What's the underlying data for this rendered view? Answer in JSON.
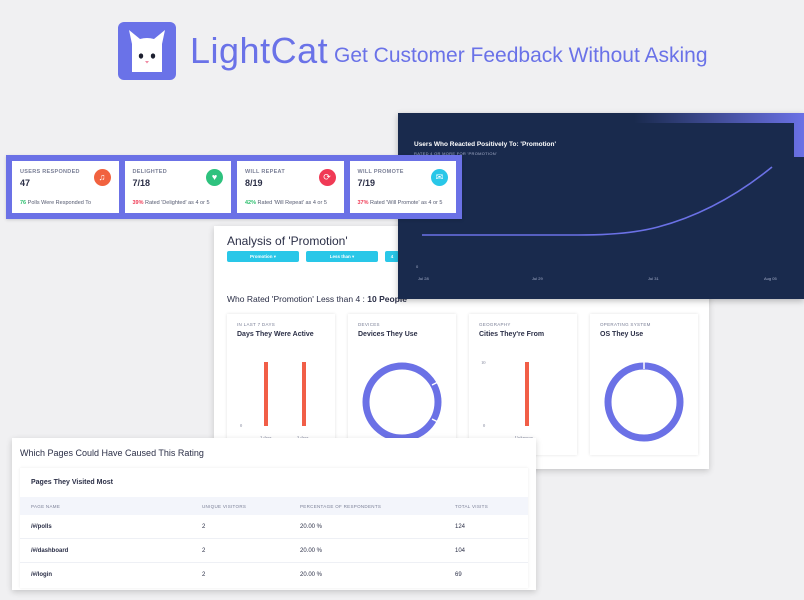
{
  "header": {
    "brand": "LightCat",
    "tagline": "Get Customer Feedback Without Asking"
  },
  "stats": [
    {
      "label": "USERS RESPONDED",
      "value": "47",
      "pct": "76",
      "sub": " Polls Were Responded To",
      "pct_color": "#2dbf6e",
      "icon": "music-note-icon",
      "icon_color": "#f1623f",
      "glyph": "♫"
    },
    {
      "label": "DELIGHTED",
      "value": "7/18",
      "pct": "39%",
      "sub": " Rated 'Delighted' as 4 or 5",
      "pct_color": "#f03a55",
      "icon": "heart-icon",
      "icon_color": "#2ec27e",
      "glyph": "♥"
    },
    {
      "label": "WILL REPEAT",
      "value": "8/19",
      "pct": "42%",
      "sub": " Rated 'Will Repeat' as 4 or 5",
      "pct_color": "#2dbf6e",
      "icon": "repeat-icon",
      "icon_color": "#f03a55",
      "glyph": "⟳"
    },
    {
      "label": "WILL PROMOTE",
      "value": "7/19",
      "pct": "37%",
      "sub": " Rated 'Will Promote' as 4 or 5",
      "pct_color": "#f03a55",
      "icon": "megaphone-icon",
      "icon_color": "#29c7e8",
      "glyph": "✉"
    }
  ],
  "positive_chart": {
    "title": "Users Who Reacted Positively To: 'Promotion'",
    "subtitle": "RATED 4 OR MORE FOR 'PROMOTION'",
    "y_tick": "0",
    "x_ticks": [
      "Jul 28",
      "Jul 29",
      "Jul 31",
      "Aug 05"
    ],
    "line_color": "#6b71e6"
  },
  "analysis": {
    "title": "Analysis of 'Promotion'",
    "chips": [
      "Promotion ▾",
      "Less than ▾",
      "4"
    ],
    "rated_prefix": "Who Rated 'Promotion' Less than 4 : ",
    "rated_count": "10 People"
  },
  "cards": {
    "days": {
      "label": "IN LAST 7 DAYS",
      "title": "Days They Were Active",
      "y_tick": "0",
      "x_ticks": [
        "2 days",
        "3 days"
      ]
    },
    "devices": {
      "label": "DEVICES",
      "title": "Devices They Use"
    },
    "cities": {
      "label": "GEOGRAPHY",
      "title": "Cities They're From",
      "y_ticks": [
        "10",
        "0"
      ],
      "x_tick": "Unknown"
    },
    "os": {
      "label": "OPERATING SYSTEM",
      "title": "OS They Use"
    }
  },
  "chart_data": [
    {
      "type": "bar",
      "title": "Days They Were Active",
      "categories": [
        "2 days",
        "3 days"
      ],
      "values": [
        10,
        10
      ],
      "ylim": [
        0,
        10
      ],
      "color": "#f15e47"
    },
    {
      "type": "bar",
      "title": "Cities They're From",
      "categories": [
        "Unknown"
      ],
      "values": [
        10
      ],
      "ylim": [
        0,
        10
      ],
      "color": "#f15e47"
    }
  ],
  "pages_panel": {
    "heading": "Which Pages Could Have Caused This Rating",
    "title": "Pages They Visited Most",
    "columns": [
      "PAGE NAME",
      "UNIQUE VISITORS",
      "PERCENTAGE OF RESPONDENTS",
      "TOTAL VISITS"
    ],
    "rows": [
      {
        "name": "/#/polls",
        "visitors": "2",
        "pct": "20.00 %",
        "visits": "124"
      },
      {
        "name": "/#/dashboard",
        "visitors": "2",
        "pct": "20.00 %",
        "visits": "104"
      },
      {
        "name": "/#/login",
        "visitors": "2",
        "pct": "20.00 %",
        "visits": "69"
      }
    ]
  }
}
